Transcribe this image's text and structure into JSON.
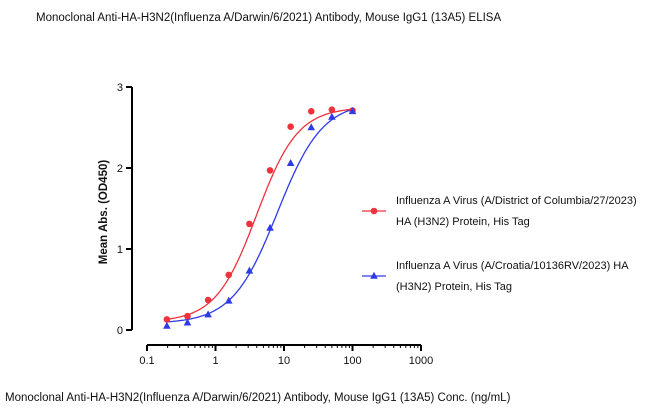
{
  "chart_data": {
    "type": "scatter",
    "title": "Monoclonal Anti-HA-H3N2(Influenza A/Darwin/6/2021) Antibody, Mouse IgG1 (13A5) ELISA",
    "xlabel": "Monoclonal Anti-HA-H3N2(Influenza A/Darwin/6/2021) Antibody, Mouse IgG1 (13A5) Conc. (ng/mL)",
    "ylabel": "Mean Abs. (OD450)",
    "xscale": "log",
    "xlim": [
      0.1,
      1000
    ],
    "ylim": [
      0,
      3
    ],
    "xticks": [
      "0.1",
      "1",
      "10",
      "100",
      "1000"
    ],
    "yticks": [
      "0",
      "1",
      "2",
      "3"
    ],
    "legend_position": "right",
    "series": [
      {
        "name_lines": [
          "Influenza A Virus (A/District of Columbia/27/2023)",
          "HA (H3N2) Protein, His Tag"
        ],
        "color": "#f0323c",
        "marker": "circle",
        "x": [
          0.195,
          0.39,
          0.78,
          1.56,
          3.125,
          6.25,
          12.5,
          25,
          50,
          100
        ],
        "y": [
          0.13,
          0.17,
          0.37,
          0.68,
          1.31,
          1.97,
          2.51,
          2.7,
          2.72,
          2.71
        ],
        "fit": {
          "bottom": 0.1,
          "top": 2.75,
          "ec50": 4.0,
          "hill": 1.45
        }
      },
      {
        "name_lines": [
          "Influenza A Virus (A/Croatia/10136RV/2023) HA",
          "(H3N2) Protein, His Tag"
        ],
        "color": "#2f3be6",
        "marker": "triangle",
        "x": [
          0.195,
          0.39,
          0.78,
          1.56,
          3.125,
          6.25,
          12.5,
          25,
          50,
          100
        ],
        "y": [
          0.05,
          0.09,
          0.19,
          0.36,
          0.73,
          1.26,
          2.06,
          2.5,
          2.63,
          2.7
        ],
        "fit": {
          "bottom": 0.08,
          "top": 2.82,
          "ec50": 8.0,
          "hill": 1.32
        }
      }
    ]
  }
}
